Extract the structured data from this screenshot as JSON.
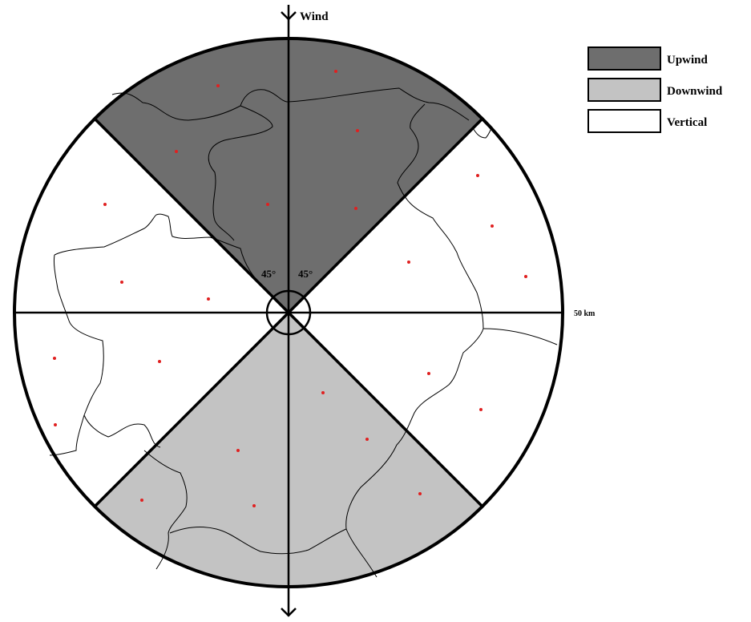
{
  "wind_label": "Wind",
  "distance_label": "50 km",
  "angle_label_left": "45°",
  "angle_label_right": "45°",
  "legend": [
    {
      "label": "Upwind",
      "color": "#6e6e6e"
    },
    {
      "label": "Downwind",
      "color": "#c3c3c3"
    },
    {
      "label": "Vertical",
      "color": "#ffffff"
    }
  ],
  "colors": {
    "upwind": "#6e6e6e",
    "downwind": "#c3c3c3",
    "vertical": "#ffffff",
    "outline": "#000000",
    "station_dot": "#e02020",
    "boundary": "#000000"
  },
  "station_count": 26
}
